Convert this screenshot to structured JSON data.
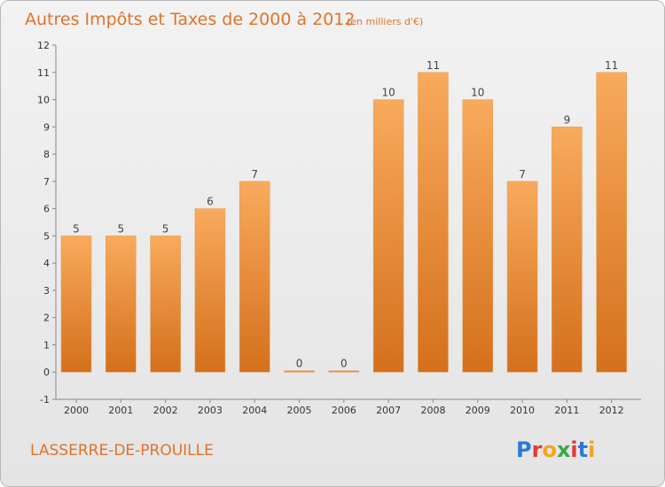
{
  "chart_data": {
    "type": "bar",
    "title": "Autres Impôts et Taxes de 2000 à 2012",
    "subtitle": "(en milliers d'€)",
    "categories": [
      "2000",
      "2001",
      "2002",
      "2003",
      "2004",
      "2005",
      "2006",
      "2007",
      "2008",
      "2009",
      "2010",
      "2011",
      "2012"
    ],
    "values": [
      5,
      5,
      5,
      6,
      7,
      0,
      0,
      10,
      11,
      10,
      7,
      9,
      11
    ],
    "ylim": [
      -1,
      12
    ],
    "yticks": [
      -1,
      0,
      1,
      2,
      3,
      4,
      5,
      6,
      7,
      8,
      9,
      10,
      11,
      12
    ],
    "xlabel": "",
    "ylabel": "",
    "grid": false,
    "bar_color": "#f0913f"
  },
  "footer": {
    "place": "LASSERRE-DE-PROUILLE",
    "brand": "Proxiti"
  },
  "colors": {
    "accent": "#e0732c",
    "bar_light": "#f7a95a",
    "bar_dark": "#d9741f"
  }
}
